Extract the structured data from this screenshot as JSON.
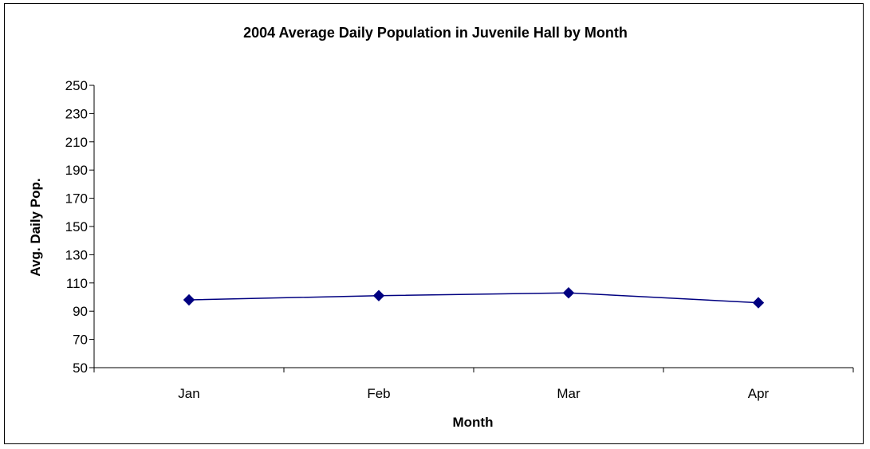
{
  "chart_data": {
    "type": "line",
    "title": "2004 Average Daily Population in Juvenile Hall by Month",
    "xlabel": "Month",
    "ylabel": "Avg. Daily Pop.",
    "categories": [
      "Jan",
      "Feb",
      "Mar",
      "Apr"
    ],
    "series": [
      {
        "values": [
          98,
          101,
          103,
          96
        ],
        "color": "#000080",
        "marker": "diamond"
      }
    ],
    "ylim": [
      50,
      250
    ],
    "yticks": [
      50,
      70,
      90,
      110,
      130,
      150,
      170,
      190,
      210,
      230,
      250
    ],
    "grid": false,
    "legend": "none"
  }
}
